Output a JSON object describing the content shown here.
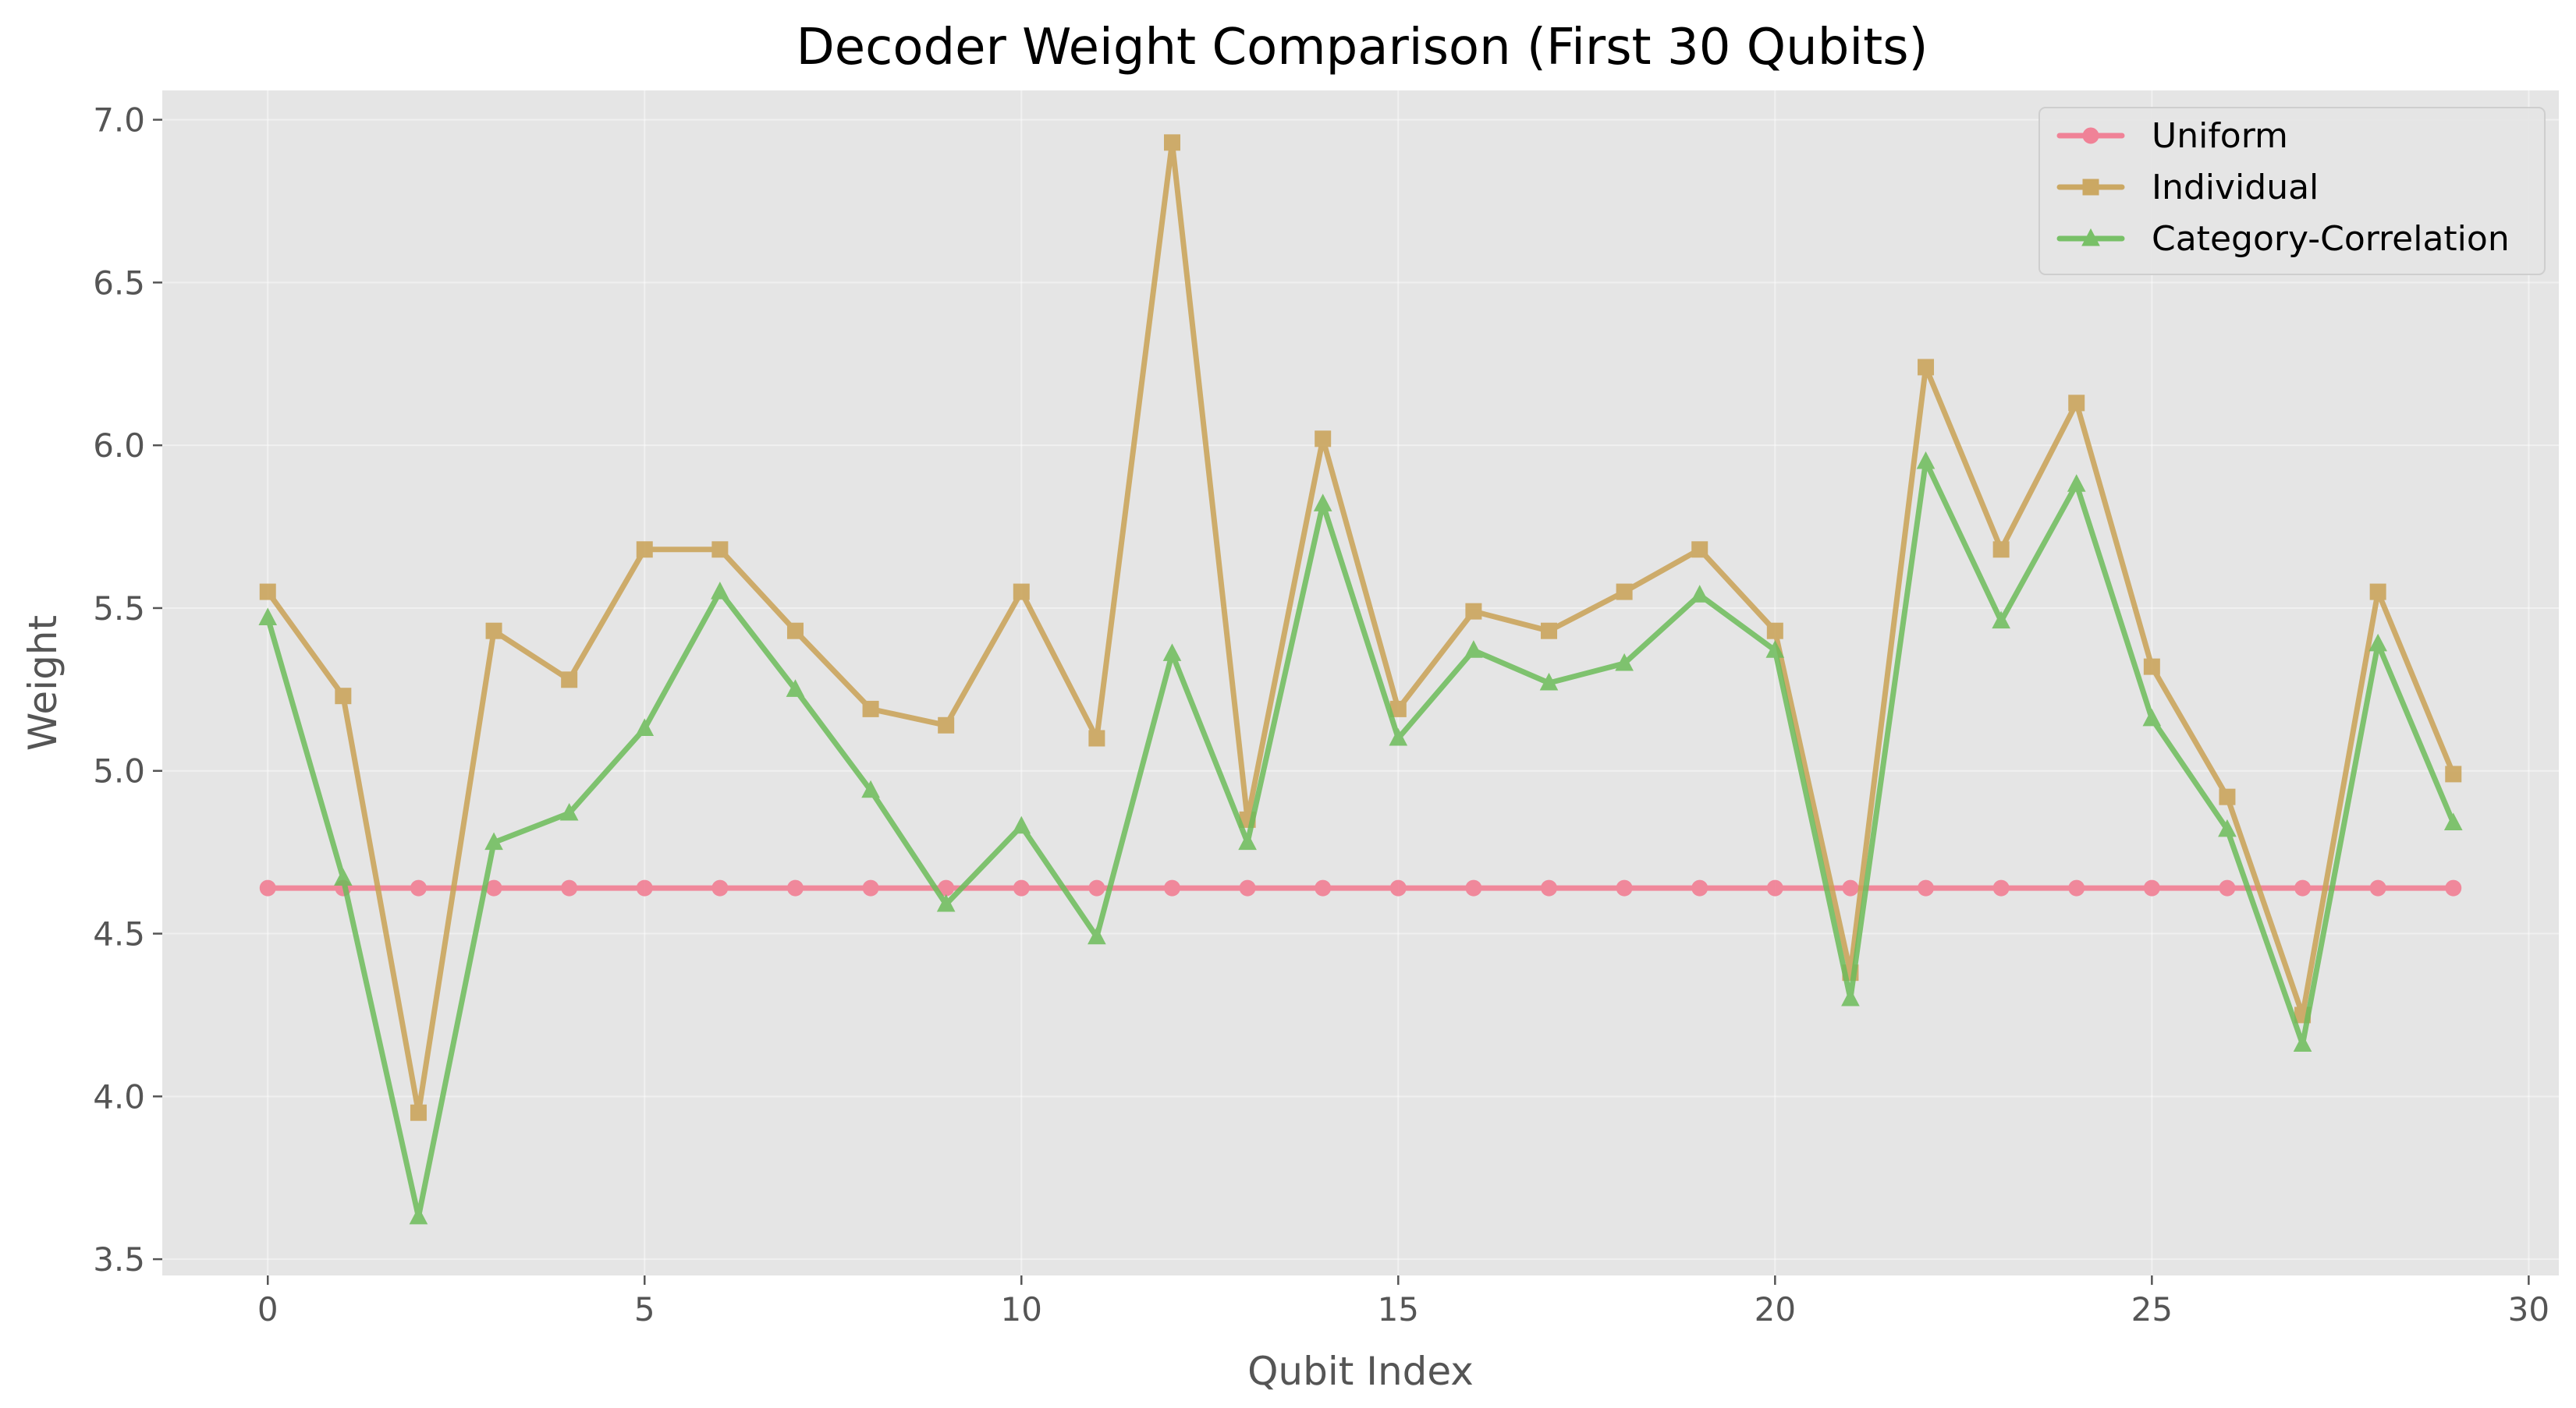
{
  "chart_data": {
    "type": "line",
    "title": "Decoder Weight Comparison (First 30 Qubits)",
    "xlabel": "Qubit Index",
    "ylabel": "Weight",
    "xlim": [
      -1.4,
      30.4
    ],
    "ylim": [
      3.45,
      7.09
    ],
    "xticks": [
      0,
      5,
      10,
      15,
      20,
      25,
      30
    ],
    "xtick_labels": [
      "0",
      "5",
      "10",
      "15",
      "20",
      "25",
      "30"
    ],
    "yticks": [
      3.5,
      4.0,
      4.5,
      5.0,
      5.5,
      6.0,
      6.5,
      7.0
    ],
    "ytick_labels": [
      "3.5",
      "4.0",
      "4.5",
      "5.0",
      "5.5",
      "6.0",
      "6.5",
      "7.0"
    ],
    "grid": true,
    "legend_position": "top-right",
    "x": [
      0,
      1,
      2,
      3,
      4,
      5,
      6,
      7,
      8,
      9,
      10,
      11,
      12,
      13,
      14,
      15,
      16,
      17,
      18,
      19,
      20,
      21,
      22,
      23,
      24,
      25,
      26,
      27,
      28,
      29
    ],
    "series": [
      {
        "name": "Uniform",
        "color": "#f2788f",
        "marker": "circle",
        "values": [
          4.64,
          4.64,
          4.64,
          4.64,
          4.64,
          4.64,
          4.64,
          4.64,
          4.64,
          4.64,
          4.64,
          4.64,
          4.64,
          4.64,
          4.64,
          4.64,
          4.64,
          4.64,
          4.64,
          4.64,
          4.64,
          4.64,
          4.64,
          4.64,
          4.64,
          4.64,
          4.64,
          4.64,
          4.64,
          4.64
        ]
      },
      {
        "name": "Individual",
        "color": "#c9a255",
        "marker": "square",
        "values": [
          5.55,
          5.23,
          3.95,
          5.43,
          5.28,
          5.68,
          5.68,
          5.43,
          5.19,
          5.14,
          5.55,
          5.1,
          6.93,
          4.85,
          6.02,
          5.19,
          5.49,
          5.43,
          5.55,
          5.68,
          5.43,
          4.38,
          6.24,
          5.68,
          6.13,
          5.32,
          4.92,
          4.25,
          5.55,
          4.99
        ]
      },
      {
        "name": "Category-Correlation",
        "color": "#6dbc5a",
        "marker": "triangle",
        "values": [
          5.47,
          4.67,
          3.63,
          4.78,
          4.87,
          5.13,
          5.55,
          5.25,
          4.94,
          4.59,
          4.83,
          4.49,
          5.36,
          4.78,
          5.82,
          5.1,
          5.37,
          5.27,
          5.33,
          5.54,
          5.37,
          4.3,
          5.95,
          5.46,
          5.88,
          5.16,
          4.82,
          4.16,
          5.39,
          4.84
        ]
      }
    ]
  }
}
